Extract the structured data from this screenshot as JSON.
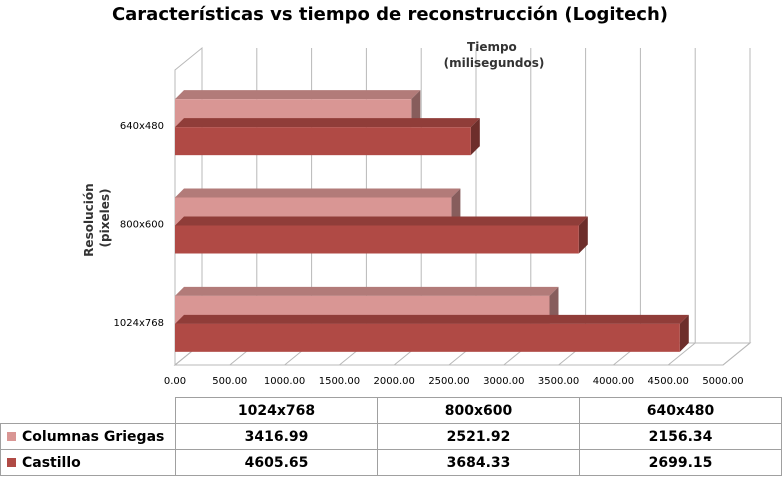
{
  "chart_data": {
    "type": "bar",
    "orientation": "horizontal",
    "title": "Características vs tiempo de reconstrucción (Logitech)",
    "xlabel": [
      "Tiempo",
      "(milisegundos)"
    ],
    "ylabel": [
      "Resolución",
      "(pixeles)"
    ],
    "categories": [
      "1024x768",
      "800x600",
      "640x480"
    ],
    "series": [
      {
        "name": "Columnas Griegas",
        "color": "#d99694",
        "values": [
          3416.99,
          2521.92,
          2156.34
        ],
        "labels": [
          "3416.99",
          "2521.92",
          "2156.34"
        ]
      },
      {
        "name": "Castillo",
        "color": "#b04a45",
        "values": [
          4605.65,
          3684.33,
          2699.15
        ],
        "labels": [
          "4605.65",
          "3684.33",
          "2699.15"
        ]
      }
    ],
    "xlim": [
      0,
      5000
    ],
    "xticks": [
      "0.00",
      "500.00",
      "1000.00",
      "1500.00",
      "2000.00",
      "2500.00",
      "3000.00",
      "3500.00",
      "4000.00",
      "4500.00",
      "5000.00"
    ],
    "grid": true,
    "legend": "data-table"
  }
}
